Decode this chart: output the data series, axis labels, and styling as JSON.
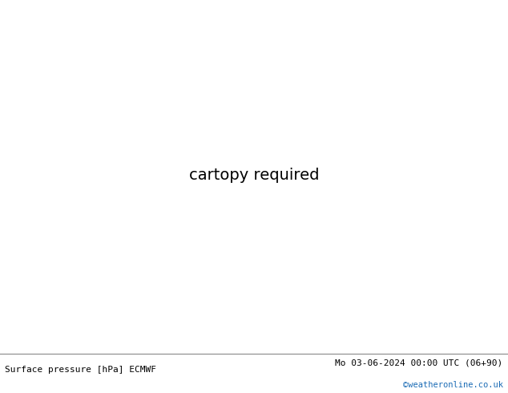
{
  "title_left": "Surface pressure [hPa] ECMWF",
  "title_right": "Mo 03-06-2024 00:00 UTC (06+90)",
  "copyright": "©weatheronline.co.uk",
  "bg_color": "#c8c8c8",
  "land_color": "#aad890",
  "ocean_color": "#c8c8c8",
  "figure_width": 6.34,
  "figure_height": 4.9,
  "dpi": 100,
  "extent": [
    -20,
    75,
    -40,
    40
  ],
  "footer_text_color": "#000000",
  "footer_copyright_color": "#1a6bb5",
  "footer_bg": "#ffffff",
  "border_color": "#808080",
  "coastline_color": "#404040",
  "contour_black_color": "#000000",
  "contour_red_color": "#ff0000",
  "contour_blue_color": "#0000ff",
  "contour_linewidth_black": 1.4,
  "contour_linewidth_color": 0.9,
  "label_fontsize": 6.5
}
